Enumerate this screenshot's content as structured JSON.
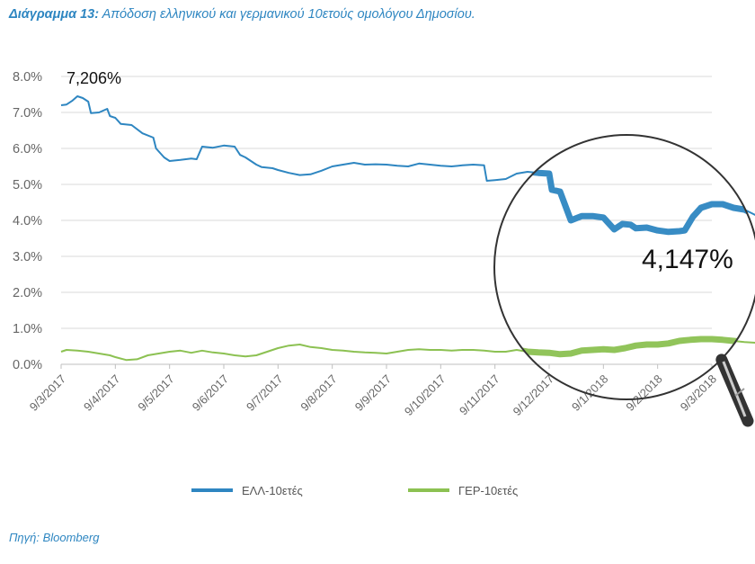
{
  "title": {
    "prefix": "Διάγραμμα 13:",
    "text": "Απόδοση ελληνικού και γερμανικού 10ετούς ομολόγου Δημοσίου."
  },
  "source": "Πηγή: Bloomberg",
  "annotations": {
    "start_value": "7,206%",
    "end_value": "4,147%"
  },
  "colors": {
    "greek": "#2e86c1",
    "german": "#8cc152",
    "lens_ring": "#333333"
  },
  "icons": {
    "magnifier": "magnifier-icon"
  },
  "chart_data": {
    "type": "line",
    "x": [
      "9/3/2017",
      "9/4/2017",
      "9/5/2017",
      "9/6/2017",
      "9/7/2017",
      "9/8/2017",
      "9/9/2017",
      "9/10/2017",
      "9/11/2017",
      "9/12/2017",
      "9/1/2018",
      "9/2/2018",
      "9/3/2018"
    ],
    "yticks": [
      "8.0%",
      "7.0%",
      "6.0%",
      "5.0%",
      "4.0%",
      "3.0%",
      "2.0%",
      "1.0%",
      "0.0%"
    ],
    "ylim": [
      0,
      8
    ],
    "grid": true,
    "legend_position": "bottom",
    "series": [
      {
        "name": "ΕΛΛ-10ετές",
        "values": [
          [
            0,
            7.2
          ],
          [
            0.1,
            7.22
          ],
          [
            0.2,
            7.32
          ],
          [
            0.3,
            7.45
          ],
          [
            0.4,
            7.4
          ],
          [
            0.5,
            7.3
          ],
          [
            0.55,
            6.98
          ],
          [
            0.7,
            7.0
          ],
          [
            0.85,
            7.1
          ],
          [
            0.9,
            6.9
          ],
          [
            1.0,
            6.85
          ],
          [
            1.1,
            6.68
          ],
          [
            1.3,
            6.65
          ],
          [
            1.5,
            6.42
          ],
          [
            1.7,
            6.3
          ],
          [
            1.75,
            6.0
          ],
          [
            1.9,
            5.75
          ],
          [
            2.0,
            5.65
          ],
          [
            2.2,
            5.68
          ],
          [
            2.4,
            5.72
          ],
          [
            2.5,
            5.7
          ],
          [
            2.6,
            6.05
          ],
          [
            2.8,
            6.02
          ],
          [
            3.0,
            6.08
          ],
          [
            3.2,
            6.05
          ],
          [
            3.3,
            5.82
          ],
          [
            3.4,
            5.75
          ],
          [
            3.6,
            5.55
          ],
          [
            3.7,
            5.48
          ],
          [
            3.9,
            5.45
          ],
          [
            4.0,
            5.4
          ],
          [
            4.2,
            5.32
          ],
          [
            4.4,
            5.26
          ],
          [
            4.6,
            5.28
          ],
          [
            4.8,
            5.38
          ],
          [
            5.0,
            5.5
          ],
          [
            5.2,
            5.55
          ],
          [
            5.4,
            5.6
          ],
          [
            5.6,
            5.55
          ],
          [
            5.8,
            5.56
          ],
          [
            6.0,
            5.55
          ],
          [
            6.2,
            5.52
          ],
          [
            6.4,
            5.5
          ],
          [
            6.6,
            5.58
          ],
          [
            6.8,
            5.55
          ],
          [
            7.0,
            5.52
          ],
          [
            7.2,
            5.5
          ],
          [
            7.4,
            5.53
          ],
          [
            7.6,
            5.55
          ],
          [
            7.8,
            5.53
          ],
          [
            7.85,
            5.1
          ],
          [
            8.0,
            5.12
          ],
          [
            8.2,
            5.15
          ],
          [
            8.4,
            5.3
          ],
          [
            8.6,
            5.35
          ],
          [
            8.8,
            5.32
          ],
          [
            9.0,
            5.3
          ],
          [
            9.05,
            4.85
          ],
          [
            9.2,
            4.8
          ],
          [
            9.3,
            4.4
          ],
          [
            9.4,
            4.0
          ],
          [
            9.6,
            4.12
          ],
          [
            9.8,
            4.12
          ],
          [
            10.0,
            4.08
          ],
          [
            10.2,
            3.75
          ],
          [
            10.35,
            3.9
          ],
          [
            10.5,
            3.88
          ],
          [
            10.6,
            3.78
          ],
          [
            10.8,
            3.8
          ],
          [
            11.0,
            3.72
          ],
          [
            11.2,
            3.68
          ],
          [
            11.4,
            3.7
          ],
          [
            11.5,
            3.72
          ],
          [
            11.65,
            4.1
          ],
          [
            11.8,
            4.35
          ],
          [
            12.0,
            4.45
          ],
          [
            12.2,
            4.45
          ],
          [
            12.4,
            4.35
          ],
          [
            12.6,
            4.3
          ],
          [
            12.8,
            4.15
          ],
          [
            13.0,
            4.15
          ]
        ]
      },
      {
        "name": "ΓΕΡ-10ετές",
        "values": [
          [
            0,
            0.35
          ],
          [
            0.1,
            0.4
          ],
          [
            0.3,
            0.38
          ],
          [
            0.5,
            0.35
          ],
          [
            0.7,
            0.3
          ],
          [
            0.9,
            0.25
          ],
          [
            1.0,
            0.2
          ],
          [
            1.2,
            0.12
          ],
          [
            1.4,
            0.14
          ],
          [
            1.6,
            0.25
          ],
          [
            1.8,
            0.3
          ],
          [
            2.0,
            0.35
          ],
          [
            2.2,
            0.38
          ],
          [
            2.4,
            0.32
          ],
          [
            2.6,
            0.38
          ],
          [
            2.8,
            0.33
          ],
          [
            3.0,
            0.3
          ],
          [
            3.2,
            0.25
          ],
          [
            3.4,
            0.22
          ],
          [
            3.6,
            0.25
          ],
          [
            3.8,
            0.35
          ],
          [
            4.0,
            0.45
          ],
          [
            4.2,
            0.52
          ],
          [
            4.4,
            0.55
          ],
          [
            4.6,
            0.48
          ],
          [
            4.8,
            0.45
          ],
          [
            5.0,
            0.4
          ],
          [
            5.2,
            0.38
          ],
          [
            5.4,
            0.35
          ],
          [
            5.6,
            0.33
          ],
          [
            5.8,
            0.32
          ],
          [
            6.0,
            0.3
          ],
          [
            6.2,
            0.35
          ],
          [
            6.4,
            0.4
          ],
          [
            6.6,
            0.42
          ],
          [
            6.8,
            0.4
          ],
          [
            7.0,
            0.4
          ],
          [
            7.2,
            0.38
          ],
          [
            7.4,
            0.4
          ],
          [
            7.6,
            0.4
          ],
          [
            7.8,
            0.38
          ],
          [
            8.0,
            0.35
          ],
          [
            8.2,
            0.35
          ],
          [
            8.4,
            0.4
          ],
          [
            8.6,
            0.35
          ],
          [
            8.8,
            0.33
          ],
          [
            9.0,
            0.32
          ],
          [
            9.2,
            0.28
          ],
          [
            9.4,
            0.3
          ],
          [
            9.6,
            0.38
          ],
          [
            9.8,
            0.4
          ],
          [
            10.0,
            0.42
          ],
          [
            10.2,
            0.4
          ],
          [
            10.4,
            0.45
          ],
          [
            10.6,
            0.52
          ],
          [
            10.8,
            0.55
          ],
          [
            11.0,
            0.55
          ],
          [
            11.2,
            0.58
          ],
          [
            11.4,
            0.65
          ],
          [
            11.6,
            0.68
          ],
          [
            11.8,
            0.7
          ],
          [
            12.0,
            0.7
          ],
          [
            12.2,
            0.68
          ],
          [
            12.4,
            0.65
          ],
          [
            12.6,
            0.62
          ],
          [
            12.8,
            0.6
          ],
          [
            13.0,
            0.58
          ]
        ]
      }
    ]
  }
}
